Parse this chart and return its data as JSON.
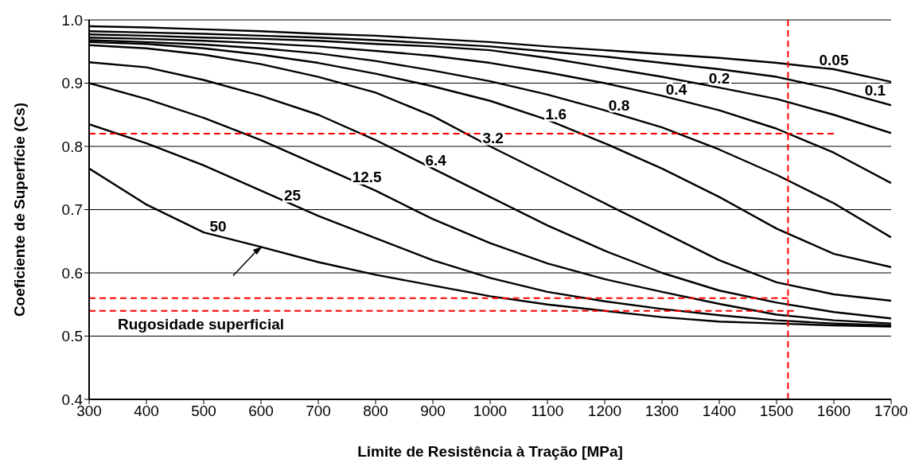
{
  "chart_data": {
    "type": "line",
    "xlabel": "Limite de Resistência à Tração [MPa]",
    "ylabel": "Coeficiente de Superfície (Cs)",
    "x": [
      300,
      400,
      500,
      600,
      700,
      800,
      900,
      1000,
      1100,
      1200,
      1300,
      1400,
      1500,
      1600,
      1700
    ],
    "xlim": [
      300,
      1700
    ],
    "xticks": [
      300,
      400,
      500,
      600,
      700,
      800,
      900,
      1000,
      1100,
      1200,
      1300,
      1400,
      1500,
      1600,
      1700
    ],
    "ylim": [
      0.4,
      1.0
    ],
    "yticks": [
      0.4,
      0.5,
      0.6,
      0.7,
      0.8,
      0.9,
      {
        "value": 1.0,
        "label": "1.0"
      }
    ],
    "grid": "y",
    "line_style": "solid",
    "series": [
      {
        "name": "0.05",
        "color": "#000000",
        "values": [
          0.99,
          0.988,
          0.985,
          0.982,
          0.978,
          0.975,
          0.97,
          0.965,
          0.958,
          0.952,
          0.946,
          0.94,
          0.932,
          0.922,
          0.902
        ]
      },
      {
        "name": "0.1",
        "color": "#000000",
        "values": [
          0.982,
          0.98,
          0.978,
          0.975,
          0.972,
          0.968,
          0.963,
          0.958,
          0.95,
          0.942,
          0.932,
          0.922,
          0.91,
          0.89,
          0.865
        ]
      },
      {
        "name": "0.2",
        "color": "#000000",
        "values": [
          0.977,
          0.975,
          0.972,
          0.97,
          0.967,
          0.962,
          0.958,
          0.952,
          0.94,
          0.925,
          0.91,
          0.893,
          0.875,
          0.85,
          0.821
        ]
      },
      {
        "name": "0.4",
        "color": "#000000",
        "values": [
          0.972,
          0.97,
          0.967,
          0.963,
          0.958,
          0.951,
          0.943,
          0.932,
          0.917,
          0.9,
          0.88,
          0.857,
          0.828,
          0.79,
          0.742
        ]
      },
      {
        "name": "0.8",
        "color": "#000000",
        "values": [
          0.968,
          0.965,
          0.961,
          0.955,
          0.947,
          0.935,
          0.92,
          0.903,
          0.882,
          0.857,
          0.83,
          0.795,
          0.755,
          0.71,
          0.656
        ]
      },
      {
        "name": "1.6",
        "color": "#000000",
        "values": [
          0.965,
          0.962,
          0.955,
          0.945,
          0.932,
          0.915,
          0.895,
          0.872,
          0.842,
          0.805,
          0.765,
          0.72,
          0.67,
          0.63,
          0.609
        ]
      },
      {
        "name": "3.2",
        "color": "#000000",
        "values": [
          0.96,
          0.955,
          0.945,
          0.93,
          0.91,
          0.885,
          0.848,
          0.8,
          0.755,
          0.71,
          0.665,
          0.62,
          0.585,
          0.566,
          0.556
        ]
      },
      {
        "name": "6.4",
        "color": "#000000",
        "values": [
          0.933,
          0.925,
          0.905,
          0.88,
          0.85,
          0.81,
          0.765,
          0.72,
          0.675,
          0.635,
          0.6,
          0.572,
          0.553,
          0.538,
          0.528
        ]
      },
      {
        "name": "12.5",
        "color": "#000000",
        "values": [
          0.9,
          0.875,
          0.845,
          0.81,
          0.77,
          0.73,
          0.685,
          0.647,
          0.615,
          0.59,
          0.57,
          0.551,
          0.534,
          0.525,
          0.52
        ]
      },
      {
        "name": "25",
        "color": "#000000",
        "values": [
          0.835,
          0.805,
          0.77,
          0.73,
          0.69,
          0.655,
          0.62,
          0.592,
          0.57,
          0.555,
          0.543,
          0.533,
          0.525,
          0.52,
          0.517
        ]
      },
      {
        "name": "50",
        "color": "#000000",
        "values": [
          0.765,
          0.708,
          0.664,
          0.641,
          0.617,
          0.597,
          0.58,
          0.563,
          0.55,
          0.54,
          0.53,
          0.523,
          0.52,
          0.517,
          0.515
        ]
      },
      {
        "color": "#ff0000",
        "line_style": "dashed",
        "x": [
          300,
          1600
        ],
        "values": [
          0.82,
          0.82
        ]
      },
      {
        "color": "#ff0000",
        "line_style": "dashed",
        "x": [
          300,
          1520
        ],
        "values": [
          0.56,
          0.56
        ]
      },
      {
        "color": "#ff0000",
        "line_style": "dashed",
        "x": [
          300,
          1530
        ],
        "values": [
          0.54,
          0.54
        ]
      },
      {
        "color": "#ff0000",
        "line_style": "dashed",
        "x": [
          1520,
          1520
        ],
        "values": [
          0.4,
          1.0
        ]
      }
    ],
    "annotations": [
      "Rugosidade superficial"
    ]
  }
}
